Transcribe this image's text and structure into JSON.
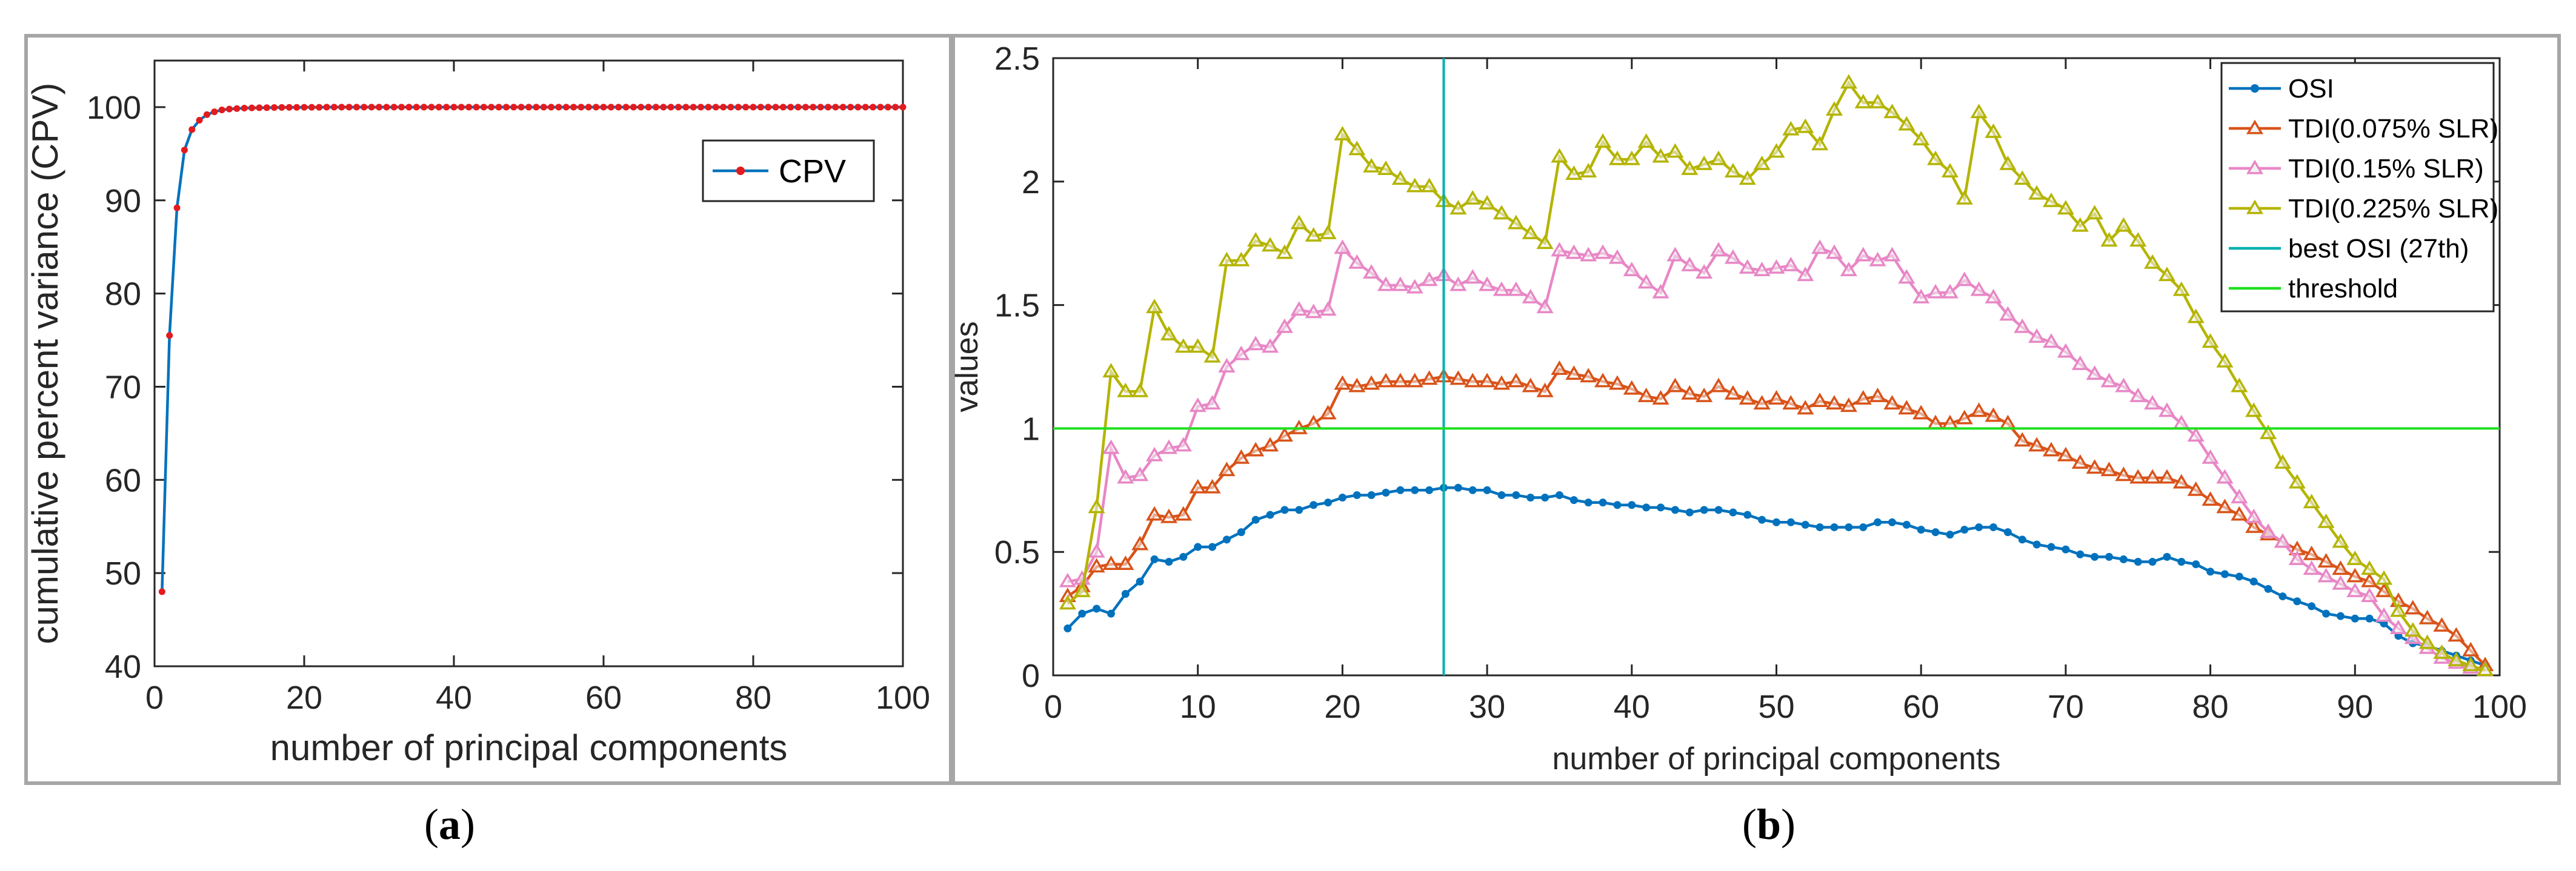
{
  "figure": {
    "caption_a": "a",
    "caption_b": "b"
  },
  "chart_data": [
    {
      "type": "line",
      "panel": "a",
      "xlabel": "number of principal components",
      "ylabel": "cumulative percent variance (CPV)",
      "xlim": [
        0,
        100
      ],
      "ylim": [
        40,
        105
      ],
      "xticks": [
        0,
        20,
        40,
        60,
        80,
        100
      ],
      "yticks": [
        40,
        50,
        60,
        70,
        80,
        90,
        100
      ],
      "legend": "top-right",
      "colors": {
        "line": "#0072bd",
        "marker": "#e41a1c"
      },
      "series": [
        {
          "name": "CPV",
          "x": [
            1,
            2,
            3,
            4,
            5,
            6,
            7,
            8,
            9,
            10,
            11,
            12,
            13,
            14,
            15,
            16,
            17,
            18,
            19,
            20,
            21,
            22,
            23,
            24,
            25,
            26,
            27,
            28,
            29,
            30,
            31,
            32,
            33,
            34,
            35,
            36,
            37,
            38,
            39,
            40,
            41,
            42,
            43,
            44,
            45,
            46,
            47,
            48,
            49,
            50,
            51,
            52,
            53,
            54,
            55,
            56,
            57,
            58,
            59,
            60,
            61,
            62,
            63,
            64,
            65,
            66,
            67,
            68,
            69,
            70,
            71,
            72,
            73,
            74,
            75,
            76,
            77,
            78,
            79,
            80,
            81,
            82,
            83,
            84,
            85,
            86,
            87,
            88,
            89,
            90,
            91,
            92,
            93,
            94,
            95,
            96,
            97,
            98,
            99,
            100
          ],
          "values": [
            48.0,
            75.5,
            89.2,
            95.4,
            97.6,
            98.6,
            99.2,
            99.5,
            99.7,
            99.8,
            99.85,
            99.9,
            99.92,
            99.94,
            99.95,
            99.96,
            99.97,
            99.98,
            99.98,
            99.99,
            99.99,
            99.99,
            100,
            100,
            100,
            100,
            100,
            100,
            100,
            100,
            100,
            100,
            100,
            100,
            100,
            100,
            100,
            100,
            100,
            100,
            100,
            100,
            100,
            100,
            100,
            100,
            100,
            100,
            100,
            100,
            100,
            100,
            100,
            100,
            100,
            100,
            100,
            100,
            100,
            100,
            100,
            100,
            100,
            100,
            100,
            100,
            100,
            100,
            100,
            100,
            100,
            100,
            100,
            100,
            100,
            100,
            100,
            100,
            100,
            100,
            100,
            100,
            100,
            100,
            100,
            100,
            100,
            100,
            100,
            100,
            100,
            100,
            100,
            100,
            100,
            100,
            100,
            100,
            100,
            100
          ]
        }
      ]
    },
    {
      "type": "line",
      "panel": "b",
      "xlabel": "number of principal components",
      "ylabel": "values",
      "xlim": [
        0,
        100
      ],
      "ylim": [
        0,
        2.5
      ],
      "xticks": [
        0,
        10,
        20,
        30,
        40,
        50,
        60,
        70,
        80,
        90,
        100
      ],
      "yticks": [
        0,
        0.5,
        1,
        1.5,
        2,
        2.5
      ],
      "legend": "top-right",
      "series": [
        {
          "name": "OSI",
          "color": "#0072bd",
          "marker": "dot",
          "values": [
            0.19,
            0.25,
            0.27,
            0.25,
            0.33,
            0.38,
            0.47,
            0.46,
            0.48,
            0.52,
            0.52,
            0.55,
            0.58,
            0.63,
            0.65,
            0.67,
            0.67,
            0.69,
            0.7,
            0.72,
            0.73,
            0.73,
            0.74,
            0.75,
            0.75,
            0.75,
            0.76,
            0.76,
            0.75,
            0.75,
            0.73,
            0.73,
            0.72,
            0.72,
            0.73,
            0.71,
            0.7,
            0.7,
            0.69,
            0.69,
            0.68,
            0.68,
            0.67,
            0.66,
            0.67,
            0.67,
            0.66,
            0.65,
            0.63,
            0.62,
            0.62,
            0.61,
            0.6,
            0.6,
            0.6,
            0.6,
            0.62,
            0.62,
            0.61,
            0.59,
            0.58,
            0.57,
            0.59,
            0.6,
            0.6,
            0.58,
            0.55,
            0.53,
            0.52,
            0.51,
            0.49,
            0.48,
            0.48,
            0.47,
            0.46,
            0.46,
            0.48,
            0.46,
            0.45,
            0.42,
            0.41,
            0.4,
            0.38,
            0.35,
            0.32,
            0.3,
            0.28,
            0.25,
            0.24,
            0.23,
            0.23,
            0.21,
            0.16,
            0.13,
            0.12,
            0.1,
            0.08,
            0.06,
            0.04
          ]
        },
        {
          "name": "TDI(0.075% SLR)",
          "color": "#d95319",
          "marker": "triangle",
          "values": [
            0.32,
            0.36,
            0.44,
            0.45,
            0.45,
            0.53,
            0.65,
            0.64,
            0.65,
            0.76,
            0.76,
            0.83,
            0.88,
            0.91,
            0.93,
            0.97,
            1.0,
            1.02,
            1.06,
            1.18,
            1.17,
            1.18,
            1.19,
            1.19,
            1.19,
            1.2,
            1.21,
            1.2,
            1.19,
            1.19,
            1.18,
            1.19,
            1.17,
            1.15,
            1.24,
            1.22,
            1.21,
            1.19,
            1.18,
            1.16,
            1.13,
            1.12,
            1.17,
            1.14,
            1.13,
            1.17,
            1.14,
            1.12,
            1.1,
            1.12,
            1.1,
            1.08,
            1.11,
            1.1,
            1.09,
            1.12,
            1.13,
            1.1,
            1.08,
            1.06,
            1.02,
            1.02,
            1.04,
            1.07,
            1.05,
            1.02,
            0.95,
            0.93,
            0.91,
            0.89,
            0.86,
            0.84,
            0.83,
            0.81,
            0.8,
            0.8,
            0.8,
            0.78,
            0.75,
            0.71,
            0.68,
            0.65,
            0.6,
            0.57,
            0.54,
            0.51,
            0.49,
            0.46,
            0.43,
            0.4,
            0.38,
            0.34,
            0.3,
            0.27,
            0.23,
            0.2,
            0.16,
            0.1,
            0.04
          ]
        },
        {
          "name": "TDI(0.15% SLR)",
          "color": "#e887c6",
          "marker": "triangle",
          "values": [
            0.38,
            0.39,
            0.5,
            0.92,
            0.8,
            0.81,
            0.89,
            0.92,
            0.93,
            1.09,
            1.1,
            1.25,
            1.3,
            1.34,
            1.33,
            1.41,
            1.48,
            1.47,
            1.48,
            1.73,
            1.67,
            1.63,
            1.58,
            1.58,
            1.57,
            1.6,
            1.62,
            1.58,
            1.61,
            1.58,
            1.56,
            1.56,
            1.53,
            1.49,
            1.72,
            1.71,
            1.7,
            1.71,
            1.69,
            1.64,
            1.59,
            1.55,
            1.7,
            1.66,
            1.63,
            1.72,
            1.69,
            1.65,
            1.64,
            1.65,
            1.66,
            1.62,
            1.73,
            1.71,
            1.64,
            1.7,
            1.68,
            1.7,
            1.61,
            1.53,
            1.55,
            1.55,
            1.6,
            1.56,
            1.53,
            1.46,
            1.41,
            1.37,
            1.35,
            1.31,
            1.26,
            1.22,
            1.19,
            1.17,
            1.13,
            1.1,
            1.07,
            1.02,
            0.97,
            0.88,
            0.8,
            0.72,
            0.64,
            0.58,
            0.54,
            0.47,
            0.43,
            0.4,
            0.37,
            0.34,
            0.32,
            0.24,
            0.19,
            0.15,
            0.11,
            0.07,
            0.05,
            0.03,
            0.02
          ]
        },
        {
          "name": "TDI(0.225% SLR)",
          "color": "#b4b400",
          "marker": "triangle",
          "values": [
            0.29,
            0.34,
            0.68,
            1.23,
            1.15,
            1.15,
            1.49,
            1.38,
            1.33,
            1.33,
            1.29,
            1.68,
            1.68,
            1.76,
            1.74,
            1.71,
            1.83,
            1.78,
            1.79,
            2.19,
            2.13,
            2.06,
            2.05,
            2.01,
            1.98,
            1.98,
            1.92,
            1.89,
            1.93,
            1.91,
            1.87,
            1.83,
            1.79,
            1.75,
            2.1,
            2.03,
            2.04,
            2.16,
            2.09,
            2.09,
            2.16,
            2.1,
            2.12,
            2.05,
            2.07,
            2.09,
            2.04,
            2.01,
            2.07,
            2.12,
            2.21,
            2.22,
            2.15,
            2.29,
            2.4,
            2.32,
            2.32,
            2.28,
            2.23,
            2.17,
            2.09,
            2.04,
            1.93,
            2.28,
            2.2,
            2.07,
            2.01,
            1.95,
            1.92,
            1.89,
            1.82,
            1.87,
            1.76,
            1.82,
            1.76,
            1.67,
            1.62,
            1.56,
            1.45,
            1.35,
            1.27,
            1.17,
            1.07,
            0.98,
            0.86,
            0.78,
            0.7,
            0.62,
            0.54,
            0.47,
            0.43,
            0.39,
            0.26,
            0.18,
            0.13,
            0.09,
            0.06,
            0.04,
            0.02
          ]
        },
        {
          "name": "best OSI (27th)",
          "color": "#00b0b0",
          "marker": "none",
          "type": "vline",
          "x": 27
        },
        {
          "name": "threshold",
          "color": "#20e020",
          "marker": "none",
          "type": "hline",
          "y": 1
        }
      ]
    }
  ]
}
